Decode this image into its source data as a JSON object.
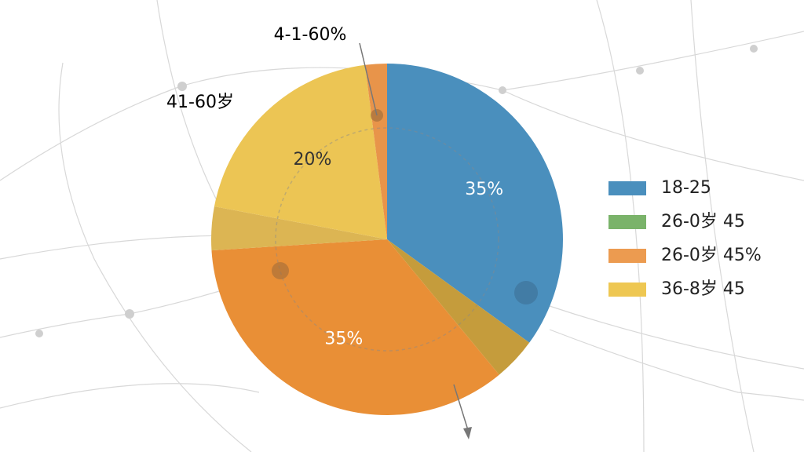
{
  "chart_data": {
    "type": "pie",
    "values": [
      35,
      4,
      35,
      4,
      20,
      2
    ],
    "value_labels": [
      "35%",
      null,
      "35%",
      null,
      "20%",
      null
    ],
    "colors": [
      "#4a8fbd",
      "#c59c3c",
      "#e98f36",
      "#dcb553",
      "#ecc554",
      "#e8944a"
    ],
    "legend": [
      {
        "name": "18-25",
        "color": "#4a8fbd"
      },
      {
        "name": "26-0岁 45",
        "color": "#7ab36a"
      },
      {
        "name": "26-0岁 45%",
        "color": "#ec9b50"
      },
      {
        "name": "36-8岁 45",
        "color": "#eec752"
      }
    ],
    "annotations": [
      "4-1-60%",
      "41-60岁"
    ]
  }
}
